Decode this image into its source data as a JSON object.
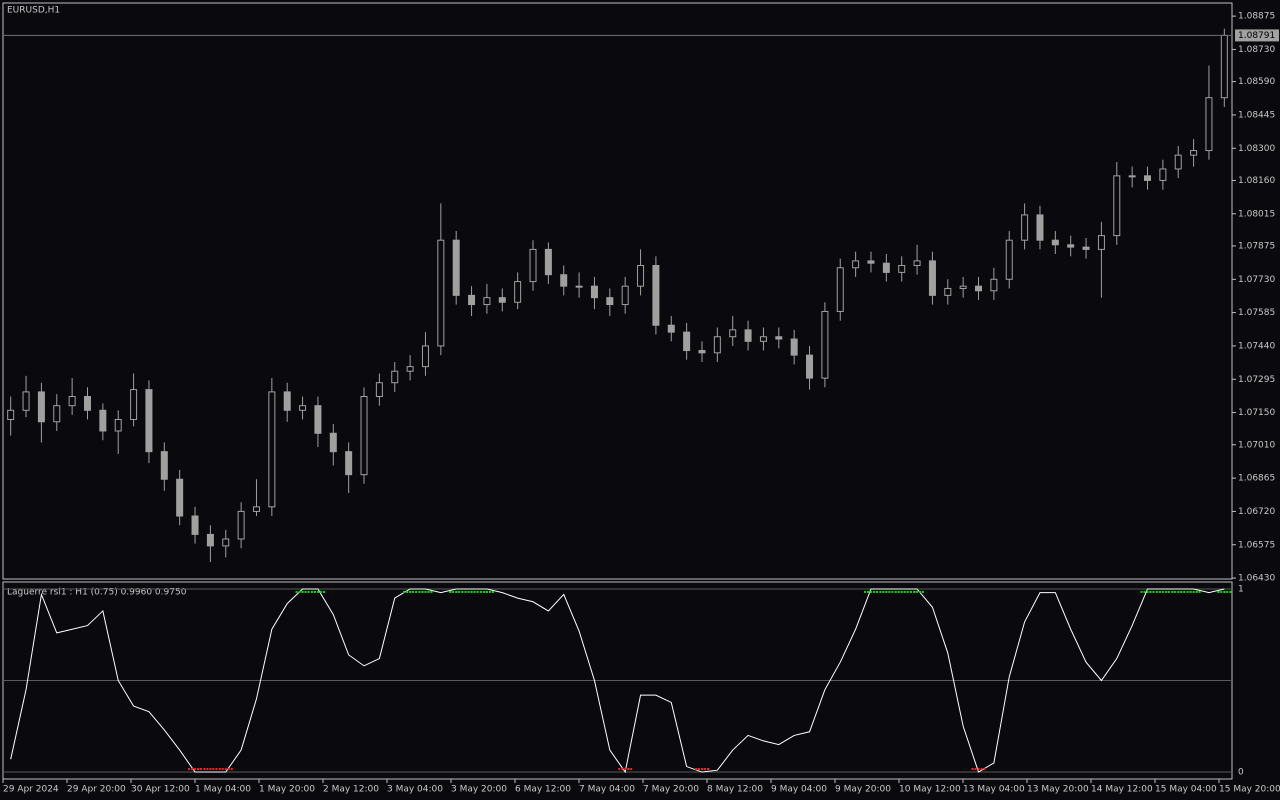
{
  "chart_data": [
    {
      "type": "candlestick",
      "title": "EURUSD,H1",
      "open": [
        1.0712,
        1.0716,
        1.0724,
        1.0711,
        1.0718,
        1.0722,
        1.0716,
        1.0707,
        1.0712,
        1.0725,
        1.0698,
        1.0686,
        1.067,
        1.0662,
        1.0657,
        1.066,
        1.0672,
        1.0674,
        1.0724,
        1.0716,
        1.0718,
        1.0706,
        1.0698,
        1.0688,
        1.0722,
        1.0728,
        1.0733,
        1.0735,
        1.0744,
        1.079,
        1.0766,
        1.0762,
        1.0765,
        1.0763,
        1.0772,
        1.0786,
        1.0775,
        1.077,
        1.077,
        1.0765,
        1.0762,
        1.077,
        1.0779,
        1.0753,
        1.075,
        1.0742,
        1.0741,
        1.0748,
        1.0751,
        1.0746,
        1.0748,
        1.0747,
        1.074,
        1.073,
        1.0759,
        1.0778,
        1.0781,
        1.078,
        1.0776,
        1.0779,
        1.0781,
        1.0766,
        1.0769,
        1.077,
        1.0768,
        1.0773,
        1.079,
        1.0801,
        1.079,
        1.0788,
        1.0787,
        1.0786,
        1.0792,
        1.0818,
        1.0818,
        1.0816,
        1.0821,
        1.0827,
        1.0829,
        1.0852
      ],
      "high": [
        1.0722,
        1.0731,
        1.0728,
        1.0723,
        1.073,
        1.0726,
        1.0719,
        1.0716,
        1.0732,
        1.0729,
        1.0702,
        1.069,
        1.0674,
        1.0666,
        1.0664,
        1.0676,
        1.0686,
        1.073,
        1.0728,
        1.0722,
        1.0722,
        1.071,
        1.0702,
        1.0726,
        1.0732,
        1.0737,
        1.074,
        1.075,
        1.0806,
        1.0794,
        1.077,
        1.0771,
        1.0769,
        1.0776,
        1.079,
        1.0789,
        1.0779,
        1.0776,
        1.0774,
        1.0769,
        1.0774,
        1.0786,
        1.0783,
        1.0757,
        1.0754,
        1.0746,
        1.0752,
        1.0757,
        1.0755,
        1.0752,
        1.0752,
        1.0751,
        1.0744,
        1.0763,
        1.0782,
        1.0785,
        1.0785,
        1.0784,
        1.0783,
        1.0788,
        1.0785,
        1.0773,
        1.0774,
        1.0774,
        1.0778,
        1.0794,
        1.0806,
        1.0805,
        1.0794,
        1.0792,
        1.0791,
        1.0798,
        1.0824,
        1.0822,
        1.0822,
        1.0825,
        1.0831,
        1.0834,
        1.0866,
        1.0882
      ],
      "low": [
        1.0705,
        1.0713,
        1.0702,
        1.0707,
        1.0714,
        1.0712,
        1.0703,
        1.0697,
        1.0709,
        1.0693,
        1.0681,
        1.0666,
        1.0658,
        1.065,
        1.0652,
        1.0656,
        1.067,
        1.067,
        1.0711,
        1.0712,
        1.07,
        1.0692,
        1.068,
        1.0684,
        1.0718,
        1.0724,
        1.0729,
        1.0731,
        1.074,
        1.0762,
        1.0757,
        1.0758,
        1.0759,
        1.076,
        1.0768,
        1.0771,
        1.0766,
        1.0765,
        1.076,
        1.0757,
        1.0758,
        1.0766,
        1.0749,
        1.0746,
        1.0738,
        1.0737,
        1.0737,
        1.0744,
        1.0742,
        1.0742,
        1.0743,
        1.0736,
        1.0725,
        1.0726,
        1.0755,
        1.0774,
        1.0776,
        1.0772,
        1.0772,
        1.0775,
        1.0762,
        1.0762,
        1.0765,
        1.0764,
        1.0764,
        1.0769,
        1.0786,
        1.0786,
        1.0784,
        1.0783,
        1.0782,
        1.0765,
        1.0788,
        1.0813,
        1.0812,
        1.0812,
        1.0817,
        1.0822,
        1.0825,
        1.0848
      ],
      "close": [
        1.0716,
        1.0724,
        1.0711,
        1.0718,
        1.0722,
        1.0716,
        1.0707,
        1.0712,
        1.0725,
        1.0698,
        1.0686,
        1.067,
        1.0662,
        1.0657,
        1.066,
        1.0672,
        1.0674,
        1.0724,
        1.0716,
        1.0718,
        1.0706,
        1.0698,
        1.0688,
        1.0722,
        1.0728,
        1.0733,
        1.0735,
        1.0744,
        1.079,
        1.0766,
        1.0762,
        1.0765,
        1.0763,
        1.0772,
        1.0786,
        1.0775,
        1.077,
        1.077,
        1.0765,
        1.0762,
        1.077,
        1.0779,
        1.0753,
        1.075,
        1.0742,
        1.0741,
        1.0748,
        1.0751,
        1.0746,
        1.0748,
        1.0747,
        1.074,
        1.073,
        1.0759,
        1.0778,
        1.0781,
        1.078,
        1.0776,
        1.0779,
        1.0781,
        1.0766,
        1.0769,
        1.077,
        1.0768,
        1.0773,
        1.079,
        1.0801,
        1.079,
        1.0788,
        1.0787,
        1.0786,
        1.0792,
        1.0818,
        1.0818,
        1.0816,
        1.0821,
        1.0827,
        1.0829,
        1.0852,
        1.08791
      ],
      "color": "#a0a0a0",
      "last_price": 1.08791,
      "ylim": [
        1.06426,
        1.08932
      ],
      "yticks": [
        {
          "value": 1.08875,
          "label": "1.08875"
        },
        {
          "value": 1.0873,
          "label": "1.08730"
        },
        {
          "value": 1.0859,
          "label": "1.08590"
        },
        {
          "value": 1.08445,
          "label": "1.08445"
        },
        {
          "value": 1.083,
          "label": "1.08300"
        },
        {
          "value": 1.0816,
          "label": "1.08160"
        },
        {
          "value": 1.08015,
          "label": "1.08015"
        },
        {
          "value": 1.07875,
          "label": "1.07875"
        },
        {
          "value": 1.0773,
          "label": "1.07730"
        },
        {
          "value": 1.07585,
          "label": "1.07585"
        },
        {
          "value": 1.0744,
          "label": "1.07440"
        },
        {
          "value": 1.07295,
          "label": "1.07295"
        },
        {
          "value": 1.0715,
          "label": "1.07150"
        },
        {
          "value": 1.0701,
          "label": "1.07010"
        },
        {
          "value": 1.06865,
          "label": "1.06865"
        },
        {
          "value": 1.0672,
          "label": "1.06720"
        },
        {
          "value": 1.06575,
          "label": "1.06575"
        },
        {
          "value": 1.0643,
          "label": "1.06430"
        }
      ],
      "time_labels": [
        "29 Apr 2024",
        "29 Apr 20:00",
        "30 Apr 12:00",
        "1 May 04:00",
        "1 May 20:00",
        "2 May 12:00",
        "3 May 04:00",
        "3 May 20:00",
        "6 May 12:00",
        "7 May 04:00",
        "7 May 20:00",
        "8 May 12:00",
        "9 May 04:00",
        "9 May 20:00",
        "10 May 12:00",
        "13 May 04:00",
        "13 May 20:00",
        "14 May 12:00",
        "15 May 04:00",
        "15 May 20:00"
      ]
    },
    {
      "type": "line",
      "title": "Laguerre rsi1 : H1 (0.75) 0.9960 0.9750",
      "values": [
        0.07,
        0.45,
        0.97,
        0.76,
        0.78,
        0.8,
        0.88,
        0.5,
        0.36,
        0.33,
        0.23,
        0.12,
        0,
        0,
        0,
        0.12,
        0.4,
        0.78,
        0.92,
        1,
        1,
        0.86,
        0.64,
        0.58,
        0.62,
        0.95,
        1,
        1,
        0.98,
        1,
        1,
        1,
        0.98,
        0.95,
        0.93,
        0.88,
        0.97,
        0.77,
        0.5,
        0.12,
        0,
        0.42,
        0.42,
        0.38,
        0.03,
        0,
        0.01,
        0.12,
        0.2,
        0.17,
        0.15,
        0.2,
        0.22,
        0.45,
        0.6,
        0.78,
        1,
        1,
        1,
        1,
        0.9,
        0.65,
        0.25,
        0,
        0.05,
        0.52,
        0.82,
        0.98,
        0.98,
        0.78,
        0.6,
        0.5,
        0.62,
        0.8,
        1,
        1,
        1,
        1,
        0.98,
        1
      ],
      "color": "#ffffff",
      "high_color": "#00e000",
      "low_color": "#ff2020",
      "levels": [
        0.5
      ],
      "ylim": [
        -0.038,
        1.038
      ],
      "yticks": [
        0,
        1
      ]
    }
  ]
}
